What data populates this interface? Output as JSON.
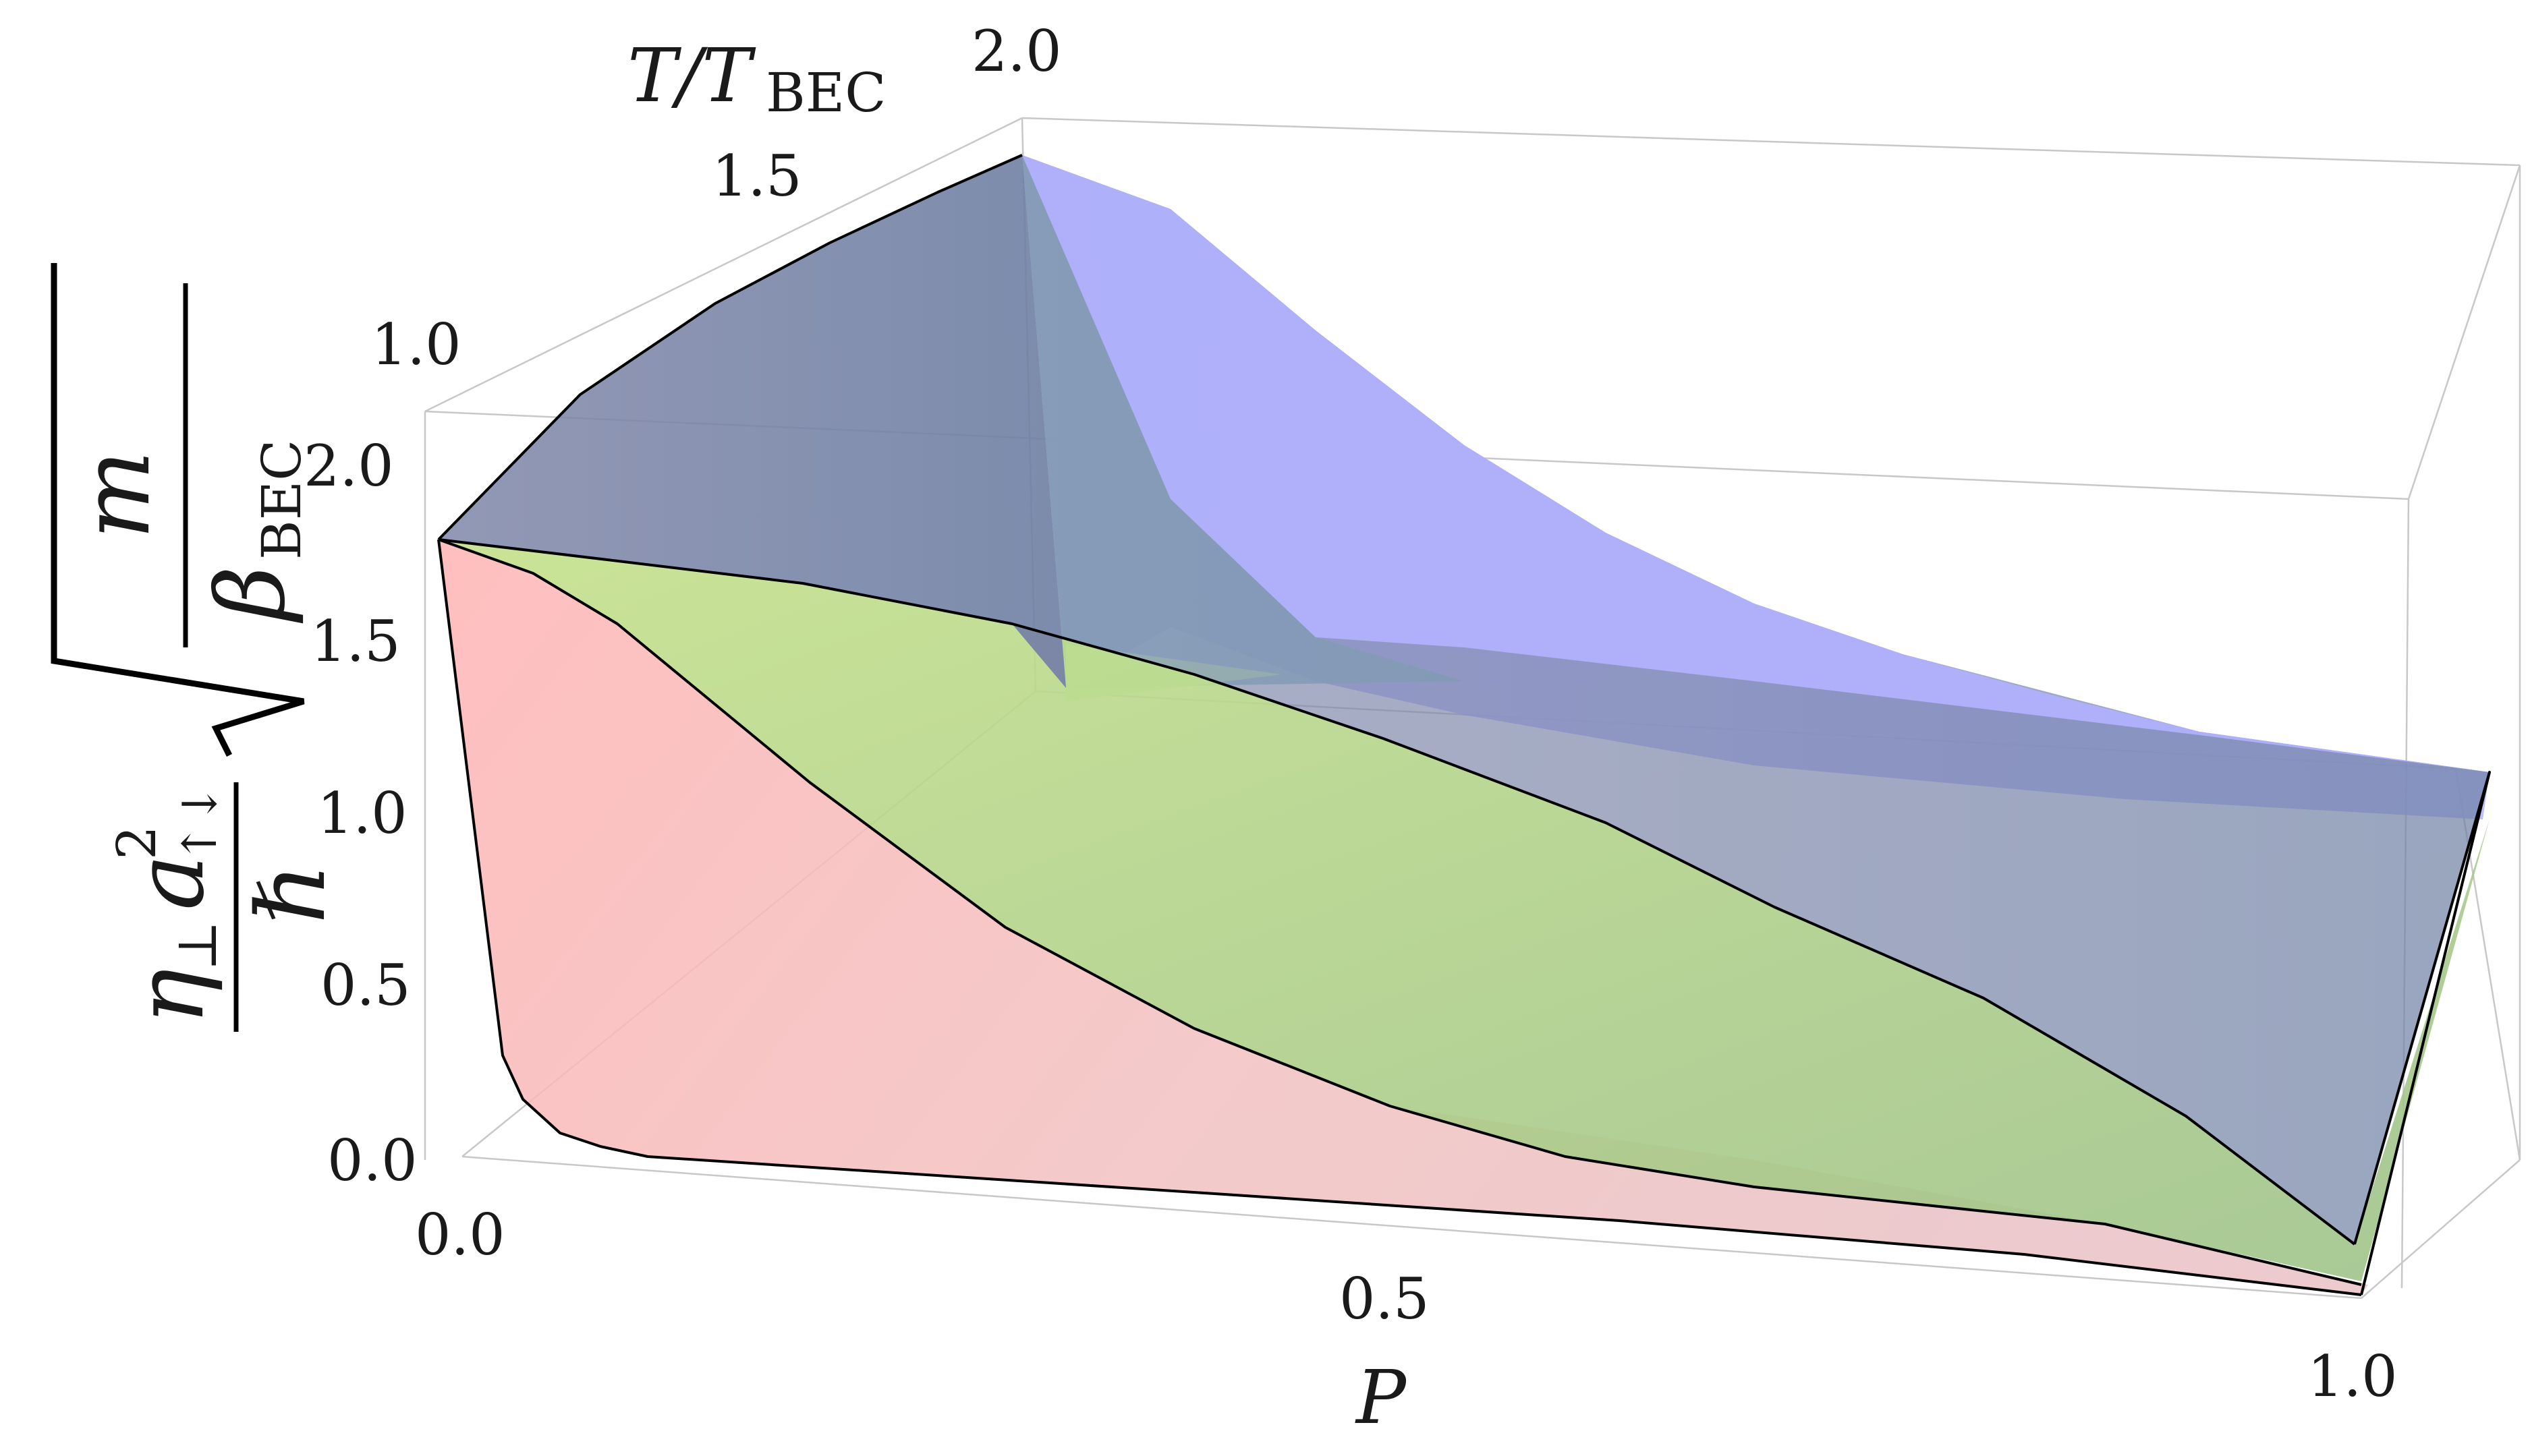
{
  "chart_data": {
    "type": "surface-3d",
    "x_axis": {
      "label": "P",
      "ticks": [
        "0.0",
        "0.5",
        "1.0"
      ],
      "range": [
        0,
        1
      ]
    },
    "y_axis": {
      "label": "T/T",
      "label_sub": "BEC",
      "ticks": [
        "1.0",
        "1.5",
        "2.0"
      ],
      "range": [
        0.8,
        2.0
      ]
    },
    "z_axis": {
      "label_parts": {
        "eta": "η",
        "perp": "⊥",
        "a": "a",
        "a_sup": "2",
        "a_sub": "↑↓",
        "hbar": "ℏ",
        "m": "m",
        "beta": "β",
        "beta_sub": "BEC"
      },
      "ticks": [
        "0.0",
        "0.5",
        "1.0",
        "1.5",
        "2.0"
      ],
      "range": [
        0,
        2.0
      ]
    },
    "surfaces": [
      {
        "color": "#ff9a9a",
        "edge_P_at_T_low": [
          [
            0,
            1.6
          ],
          [
            0.02,
            0.35
          ],
          [
            0.05,
            0.1
          ],
          [
            0.1,
            0.05
          ],
          [
            0.3,
            0.04
          ],
          [
            0.5,
            0.03
          ],
          [
            0.7,
            0.02
          ],
          [
            1.0,
            0.0
          ]
        ],
        "edge_P_at_T_high": [
          [
            0,
            1.6
          ],
          [
            0.05,
            1.55
          ],
          [
            0.1,
            1.4
          ],
          [
            0.2,
            1.1
          ],
          [
            0.3,
            0.8
          ],
          [
            0.4,
            0.58
          ],
          [
            0.5,
            0.45
          ],
          [
            0.6,
            0.36
          ],
          [
            0.7,
            0.28
          ],
          [
            0.8,
            0.2
          ],
          [
            0.9,
            0.12
          ],
          [
            1.0,
            0.03
          ]
        ]
      },
      {
        "color": "#a3f08c",
        "edge_P_at_T_low": [
          [
            0,
            1.6
          ],
          [
            0.05,
            1.55
          ],
          [
            0.1,
            1.4
          ],
          [
            0.2,
            1.1
          ],
          [
            0.3,
            0.8
          ],
          [
            0.4,
            0.58
          ],
          [
            0.5,
            0.45
          ],
          [
            0.6,
            0.36
          ],
          [
            0.7,
            0.28
          ],
          [
            0.8,
            0.2
          ],
          [
            0.9,
            0.12
          ],
          [
            1.0,
            0.03
          ]
        ],
        "edge_P_at_T_high": [
          [
            0,
            1.6
          ],
          [
            0.1,
            1.58
          ],
          [
            0.2,
            1.55
          ],
          [
            0.3,
            1.5
          ],
          [
            0.4,
            1.42
          ],
          [
            0.5,
            1.3
          ],
          [
            0.6,
            1.15
          ],
          [
            0.7,
            0.95
          ],
          [
            0.8,
            0.7
          ],
          [
            0.9,
            0.4
          ],
          [
            1.0,
            0.03
          ]
        ]
      },
      {
        "color": "#8a8aff",
        "edge_P_at_T_low": [
          [
            0,
            1.6
          ],
          [
            0.1,
            1.58
          ],
          [
            0.2,
            1.55
          ],
          [
            0.3,
            1.5
          ],
          [
            0.4,
            1.42
          ],
          [
            0.5,
            1.3
          ],
          [
            0.6,
            1.15
          ],
          [
            0.7,
            0.95
          ],
          [
            0.8,
            0.7
          ],
          [
            0.9,
            0.4
          ],
          [
            1.0,
            0.03
          ]
        ],
        "edge_P_at_T_high": [
          [
            0,
            1.95
          ],
          [
            0.1,
            1.85
          ],
          [
            0.2,
            1.55
          ],
          [
            0.3,
            1.3
          ],
          [
            0.4,
            1.2
          ],
          [
            0.5,
            1.15
          ],
          [
            0.6,
            1.1
          ],
          [
            0.7,
            1.06
          ],
          [
            0.8,
            1.03
          ],
          [
            0.9,
            1.01
          ],
          [
            1.0,
            1.0
          ]
        ]
      }
    ]
  }
}
